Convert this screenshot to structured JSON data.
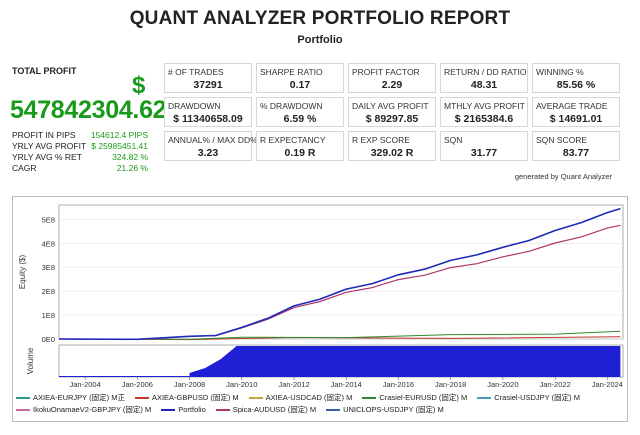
{
  "header": {
    "title": "QUANT ANALYZER PORTFOLIO REPORT",
    "subtitle": "Portfolio"
  },
  "total_profit": {
    "label": "TOTAL PROFIT",
    "currency": "$",
    "value": "547842304.62",
    "stats": [
      {
        "label": "PROFIT IN PIPS",
        "value": "154612.4 PIPS"
      },
      {
        "label": "YRLY AVG PROFIT",
        "value": "$ 25985451.41"
      },
      {
        "label": "YRLY AVG % RET",
        "value": "324.82 %"
      },
      {
        "label": "CAGR",
        "value": "21.26 %"
      }
    ]
  },
  "metrics": [
    {
      "label": "# OF TRADES",
      "value": "37291"
    },
    {
      "label": "SHARPE RATIO",
      "value": "0.17"
    },
    {
      "label": "PROFIT FACTOR",
      "value": "2.29"
    },
    {
      "label": "RETURN / DD RATIO",
      "value": "48.31"
    },
    {
      "label": "WINNING %",
      "value": "85.56 %"
    },
    {
      "label": "DRAWDOWN",
      "value": "$ 11340658.09"
    },
    {
      "label": "% DRAWDOWN",
      "value": "6.59 %"
    },
    {
      "label": "DAILY AVG PROFIT",
      "value": "$ 89297.85"
    },
    {
      "label": "MTHLY AVG PROFIT",
      "value": "$ 2165384.6"
    },
    {
      "label": "AVERAGE TRADE",
      "value": "$ 14691.01"
    },
    {
      "label": "ANNUAL% / MAX DD%",
      "value": "3.23"
    },
    {
      "label": "R EXPECTANCY",
      "value": "0.19 R"
    },
    {
      "label": "R EXP SCORE",
      "value": "329.02 R"
    },
    {
      "label": "SQN",
      "value": "31.77"
    },
    {
      "label": "SQN SCORE",
      "value": "83.77"
    }
  ],
  "generated_by": "generated by Quant Analyzer",
  "chart_data": {
    "type": "line",
    "ylabel": "Equity ($)",
    "volume_label": "Volume",
    "y_ticks": [
      "0E0",
      "1E8",
      "2E8",
      "3E8",
      "4E8",
      "5E8"
    ],
    "ylim": [
      0,
      560000000
    ],
    "x_ticks": [
      "Jan-2004",
      "Jan-2006",
      "Jan-2008",
      "Jan-2010",
      "Jan-2012",
      "Jan-2014",
      "Jan-2016",
      "Jan-2018",
      "Jan-2020",
      "Jan-2022",
      "Jan-2024"
    ],
    "xlim": [
      2003.0,
      2024.6
    ],
    "series": [
      {
        "name": "Portfolio",
        "color": "#1f2bb8",
        "width": 1.6,
        "x": [
          2003.0,
          2006.0,
          2008.0,
          2009.0,
          2010.0,
          2011.0,
          2012.0,
          2013.0,
          2014.0,
          2015.0,
          2016.0,
          2017.0,
          2018.0,
          2019.0,
          2020.0,
          2021.0,
          2022.0,
          2023.0,
          2024.0,
          2024.5
        ],
        "y": [
          0,
          2000000,
          8000000,
          18000000,
          45000000,
          90000000,
          135000000,
          170000000,
          205000000,
          235000000,
          265000000,
          295000000,
          325000000,
          355000000,
          380000000,
          415000000,
          450000000,
          490000000,
          525000000,
          545000000
        ]
      },
      {
        "name": "Spica-AUDUSD (固定) M",
        "color": "#b0366e",
        "width": 1.2,
        "x": [
          2003.0,
          2006.0,
          2008.0,
          2009.0,
          2010.0,
          2011.0,
          2012.0,
          2013.0,
          2014.0,
          2015.0,
          2016.0,
          2017.0,
          2018.0,
          2019.0,
          2020.0,
          2021.0,
          2022.0,
          2023.0,
          2024.0,
          2024.5
        ],
        "y": [
          0,
          2000000,
          8000000,
          17000000,
          43000000,
          86000000,
          128000000,
          160000000,
          192000000,
          218000000,
          245000000,
          270000000,
          295000000,
          318000000,
          340000000,
          370000000,
          398000000,
          430000000,
          460000000,
          475000000
        ]
      },
      {
        "name": "Crasiel-EURUSD (固定) M",
        "color": "#2f8a2f",
        "width": 1.0,
        "x": [
          2003.0,
          2008.0,
          2010.0,
          2014.0,
          2018.0,
          2022.0,
          2024.5
        ],
        "y": [
          0,
          2000000,
          4000000,
          9000000,
          15000000,
          24000000,
          32000000
        ]
      },
      {
        "name": "AXIEA-GBPUSD (固定) M",
        "color": "#c0392b",
        "width": 1.0,
        "x": [
          2003.0,
          2008.0,
          2012.0,
          2018.0,
          2024.5
        ],
        "y": [
          0,
          1000000,
          3000000,
          6000000,
          9000000
        ]
      }
    ],
    "volume": {
      "start": 2003.0,
      "ramp_start": 2008.0,
      "full_at": 2009.8,
      "end": 2024.5
    },
    "legend": {
      "placement": "bottom",
      "rows": [
        [
          {
            "name": "AXIEA-EURJPY (固定) M正",
            "color": "#2e9b8c"
          },
          {
            "name": "AXIEA-GBPUSD (固定) M",
            "color": "#c0392b"
          },
          {
            "name": "AXIEA-USDCAD (固定) M",
            "color": "#c9a23a"
          },
          {
            "name": "Crasiel-EURUSD (固定) M",
            "color": "#2f8a2f"
          },
          {
            "name": "Crasiel-USDJPY (固定) M",
            "color": "#4a9bb3"
          }
        ],
        [
          {
            "name": "IkokuOnamaeV2-GBPJPY (固定) M",
            "color": "#c46aa6"
          },
          {
            "name": "Portfolio",
            "color": "#1f2bb8"
          },
          {
            "name": "Spica-AUDUSD (固定) M",
            "color": "#b0366e"
          },
          {
            "name": "UNICLOPS-USDJPY (固定) M",
            "color": "#3a5fa8"
          }
        ]
      ]
    }
  }
}
